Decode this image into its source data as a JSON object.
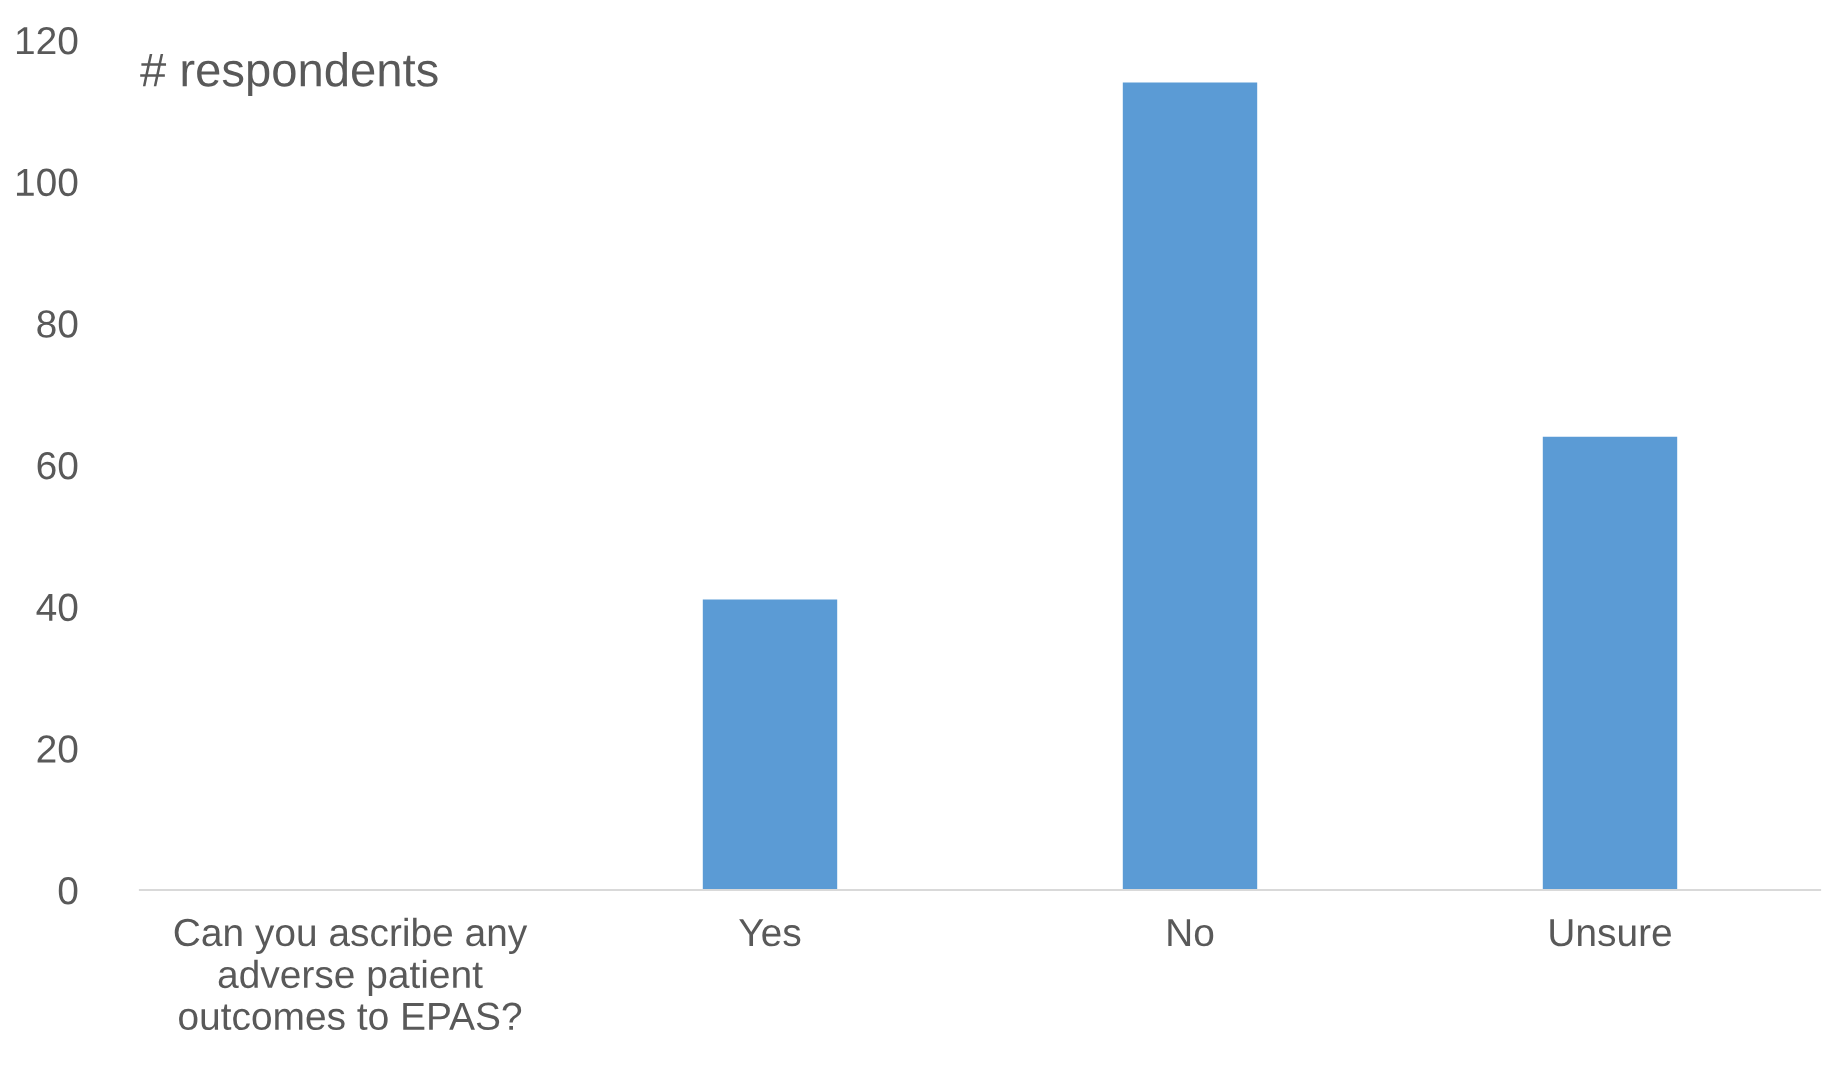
{
  "chart_data": {
    "type": "bar",
    "ylabel": "# respondents",
    "categories": [
      "Can you ascribe any\nadverse patient\noutcomes to EPAS?",
      "Yes",
      "No",
      "Unsure"
    ],
    "values": [
      null,
      41,
      114,
      64
    ],
    "color": "#5b9bd5",
    "ylim": [
      0,
      120
    ],
    "yticks": [
      0,
      20,
      40,
      60,
      80,
      100,
      120
    ],
    "grid": false,
    "legend": false
  }
}
